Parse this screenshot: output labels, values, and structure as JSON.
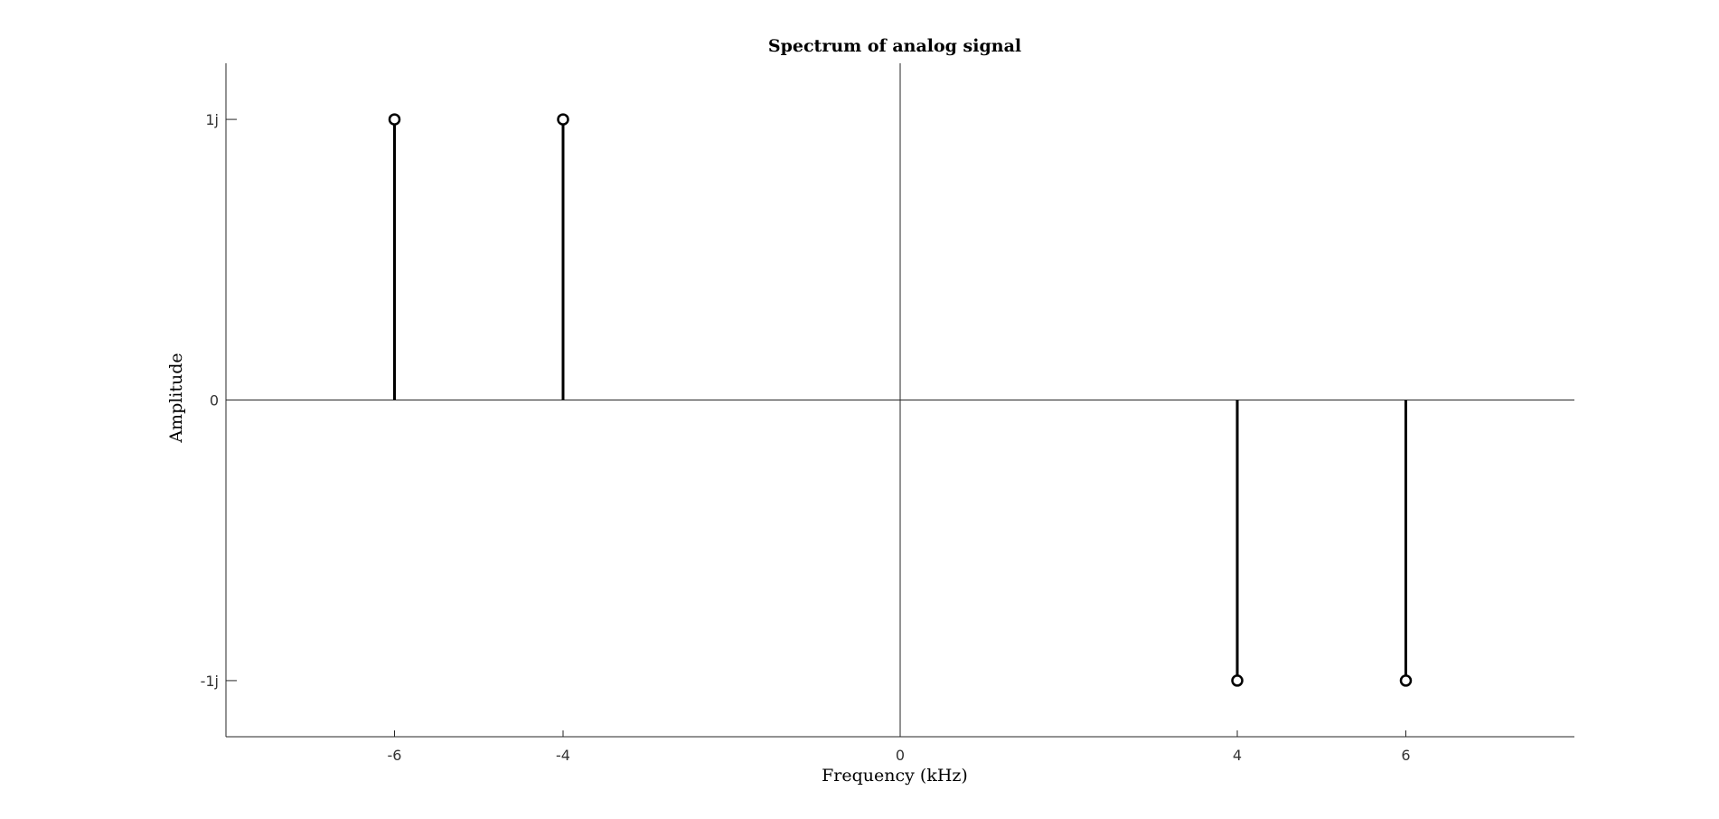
{
  "chart_data": {
    "type": "stem",
    "title": "Spectrum of analog signal",
    "xlabel": "Frequency (kHz)",
    "ylabel": "Amplitude",
    "xlim": [
      -8,
      8
    ],
    "ylim": [
      -1.2,
      1.2
    ],
    "x_ticks": [
      -6,
      -4,
      0,
      4,
      6
    ],
    "x_tick_labels": [
      "-6",
      "-4",
      "0",
      "4",
      "6"
    ],
    "y_ticks": [
      -1,
      0,
      1
    ],
    "y_tick_labels": [
      "-1j",
      "0",
      "1j"
    ],
    "grid": false,
    "reference_lines": {
      "x0": true,
      "y0": true
    },
    "series": [
      {
        "x": [
          -6,
          -4,
          4,
          6
        ],
        "values": [
          1,
          1,
          -1,
          -1
        ],
        "value_labels": [
          "1j",
          "1j",
          "-1j",
          "-1j"
        ]
      }
    ]
  }
}
